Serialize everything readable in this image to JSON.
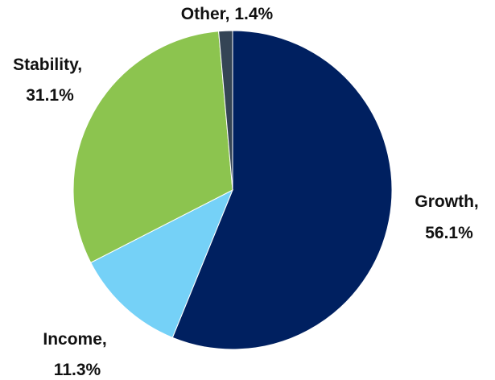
{
  "chart_data": {
    "type": "pie",
    "title": "",
    "start_angle_deg": 0,
    "direction": "clockwise",
    "legend": "none",
    "slices": [
      {
        "name": "Growth",
        "value": 56.1,
        "label_line1": "Growth,",
        "label_line2": "56.1%",
        "color": "#002060"
      },
      {
        "name": "Income",
        "value": 11.3,
        "label_line1": "Income,",
        "label_line2": "11.3%",
        "color": "#75D1F7"
      },
      {
        "name": "Stability",
        "value": 31.1,
        "label_line1": "Stability,",
        "label_line2": "31.1%",
        "color": "#8CC44F"
      },
      {
        "name": "Other",
        "value": 1.4,
        "label_line1": "Other, 1.4%",
        "label_line2": "",
        "color": "#344455"
      }
    ]
  }
}
